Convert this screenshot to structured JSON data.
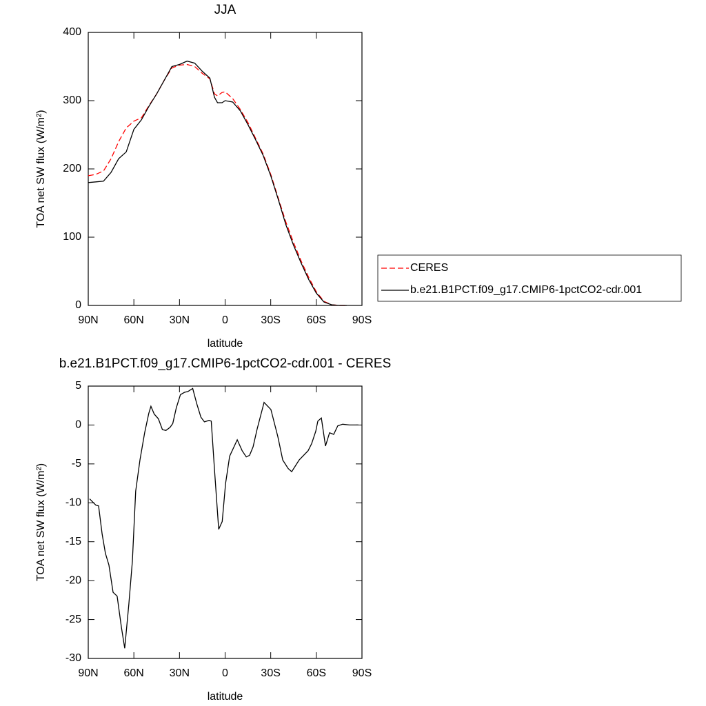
{
  "chart_data": [
    {
      "type": "line",
      "title": "JJA",
      "xlabel": "latitude",
      "ylabel": "TOA net SW flux (W/m²)",
      "x": [
        90,
        85,
        80,
        75,
        70,
        65,
        60,
        55,
        50,
        45,
        40,
        35,
        30,
        25,
        20,
        15,
        10,
        7,
        5,
        2,
        0,
        -5,
        -10,
        -15,
        -20,
        -25,
        -30,
        -35,
        -40,
        -45,
        -50,
        -55,
        -60,
        -65,
        -70,
        -75,
        -80
      ],
      "series": [
        {
          "name": "CERES",
          "color": "#ff0000",
          "style": "dashed",
          "values": [
            190,
            192,
            197,
            215,
            240,
            260,
            270,
            275,
            293,
            310,
            330,
            348,
            352,
            353,
            350,
            340,
            332,
            310,
            307,
            312,
            313,
            303,
            287,
            268,
            245,
            222,
            192,
            157,
            122,
            92,
            65,
            41,
            20,
            6,
            1,
            0,
            0
          ]
        },
        {
          "name": "b.e21.B1PCT.f09_g17.CMIP6-1pctCO2-cdr.001",
          "color": "#000000",
          "style": "solid",
          "values": [
            180,
            181,
            182,
            195,
            215,
            225,
            258,
            272,
            292,
            310,
            330,
            350,
            353,
            358,
            355,
            343,
            333,
            305,
            297,
            297,
            300,
            298,
            285,
            265,
            243,
            220,
            190,
            155,
            118,
            88,
            62,
            38,
            18,
            5,
            1,
            0,
            0
          ]
        }
      ],
      "xlim": [
        90,
        -90
      ],
      "xticks": [
        {
          "value": 90,
          "label": "90N"
        },
        {
          "value": 60,
          "label": "60N"
        },
        {
          "value": 30,
          "label": "30N"
        },
        0,
        {
          "value": -30,
          "label": "30S"
        },
        {
          "value": -60,
          "label": "60S"
        },
        {
          "value": -90,
          "label": "90S"
        }
      ],
      "ylim": [
        0,
        400
      ],
      "yticks": [
        0,
        100,
        200,
        300,
        400
      ],
      "legend": "right"
    },
    {
      "type": "line",
      "title": "b.e21.B1PCT.f09_g17.CMIP6-1pctCO2-cdr.001 - CERES",
      "xlabel": "latitude",
      "ylabel": "TOA net SW flux (W/m²)",
      "x": [
        89.1,
        85,
        83.2,
        80.9,
        78.7,
        76.4,
        73.7,
        71,
        68.2,
        66,
        63.3,
        61,
        58.8,
        56,
        52.9,
        50.2,
        48.8,
        46.6,
        43.9,
        41.2,
        38.9,
        36.2,
        34.4,
        32.1,
        29.4,
        26.7,
        24.5,
        21.3,
        18.6,
        15.9,
        13.6,
        10.5,
        9.1,
        6.9,
        4.2,
        1.9,
        -0.3,
        -3,
        -8,
        -11.2,
        -13.9,
        -16.1,
        -18.4,
        -21.1,
        -25.6,
        -30.1,
        -34.7,
        -37.9,
        -41.5,
        -43.8,
        -48.7,
        -54.6,
        -56.9,
        -59.6,
        -61,
        -63.3,
        -66,
        -68.7,
        -71.4,
        -74.1,
        -77.3,
        -81.8,
        -87.7
      ],
      "values": [
        -9.5,
        -10.3,
        -10.4,
        -14,
        -16.5,
        -18,
        -21.5,
        -22,
        -26,
        -28.7,
        -23,
        -17.5,
        -8.5,
        -4.5,
        -1,
        1.5,
        2.4,
        1.4,
        0.8,
        -0.6,
        -0.7,
        -0.3,
        0.2,
        2.2,
        3.9,
        4.2,
        4.3,
        4.7,
        2.7,
        1,
        0.4,
        0.6,
        0.5,
        -6,
        -13.4,
        -12.4,
        -7.5,
        -4,
        -1.9,
        -3.3,
        -4.1,
        -3.9,
        -2.8,
        -0.5,
        2.9,
        2,
        -1.5,
        -4.5,
        -5.6,
        -6,
        -4.5,
        -3.3,
        -2.4,
        -0.8,
        0.5,
        0.9,
        -2.7,
        -1,
        -1.2,
        -0.1,
        0.1,
        0,
        0
      ],
      "color": "#000000",
      "style": "solid",
      "xlim": [
        90,
        -90
      ],
      "xticks": [
        {
          "value": 90,
          "label": "90N"
        },
        {
          "value": 60,
          "label": "60N"
        },
        {
          "value": 30,
          "label": "30N"
        },
        0,
        {
          "value": -30,
          "label": "30S"
        },
        {
          "value": -60,
          "label": "60S"
        },
        {
          "value": -90,
          "label": "90S"
        }
      ],
      "ylim": [
        -30,
        5
      ],
      "yticks": [
        5,
        0,
        -5,
        -10,
        -15,
        -20,
        -25,
        -30
      ]
    }
  ]
}
